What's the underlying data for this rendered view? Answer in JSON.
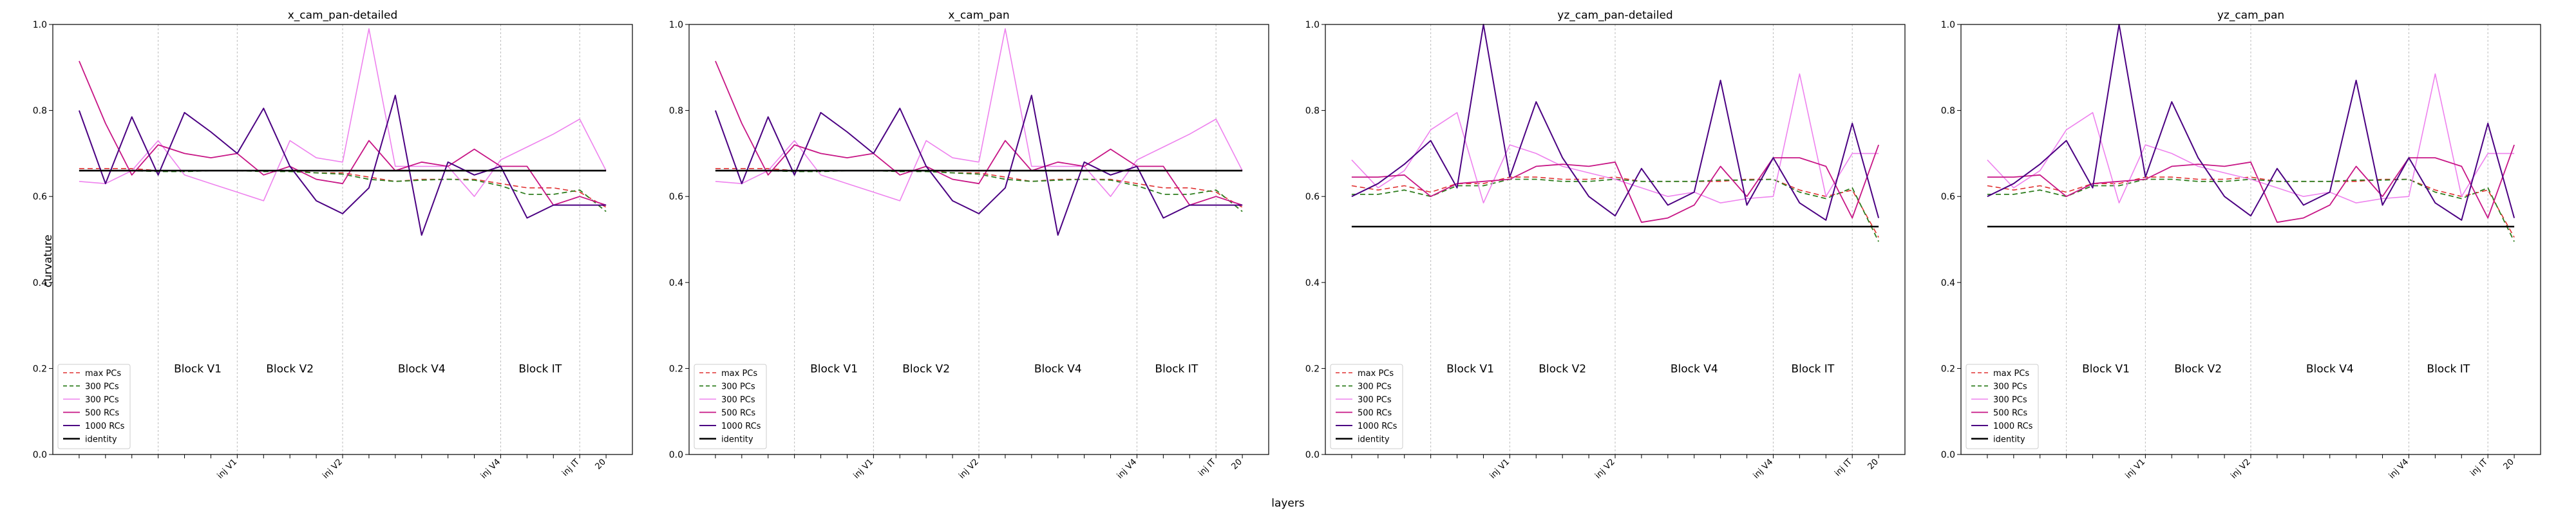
{
  "figure": {
    "xlabel": "layers"
  },
  "colors": {
    "max PCs": "#e03030",
    "300 PCs green": "#2e7d1e",
    "300 PCs pink": "#ee82ee",
    "500 RCs": "#c71585",
    "1000 RCs": "#4b0082",
    "identity": "#000000"
  },
  "chart_data": [
    {
      "type": "line",
      "title": "x_cam_pan-detailed",
      "xlabel": "layers",
      "ylabel": "curvature",
      "xlim": [
        -1,
        21
      ],
      "ylim": [
        0.0,
        1.0
      ],
      "yticks": [
        "0.0",
        "0.2",
        "0.4",
        "0.6",
        "0.8",
        "1.0"
      ],
      "x_tick_labels": [
        {
          "x": 6,
          "label": "inj V1"
        },
        {
          "x": 10,
          "label": "inj V2"
        },
        {
          "x": 16,
          "label": "inj V4"
        },
        {
          "x": 19,
          "label": "inj IT"
        },
        {
          "x": 20,
          "label": "20"
        }
      ],
      "block_lines": [
        3,
        6,
        10,
        16,
        19
      ],
      "block_labels": [
        {
          "x": 4.5,
          "label": "Block V1"
        },
        {
          "x": 8,
          "label": "Block V2"
        },
        {
          "x": 13,
          "label": "Block V4"
        },
        {
          "x": 17.5,
          "label": "Block IT"
        }
      ],
      "legend": [
        "max PCs",
        "300 PCs",
        "300 PCs",
        "500 RCs",
        "1000 RCs",
        "identity"
      ],
      "x": [
        0,
        1,
        2,
        3,
        4,
        5,
        6,
        7,
        8,
        9,
        10,
        11,
        12,
        13,
        14,
        15,
        16,
        17,
        18,
        19,
        20
      ],
      "series": [
        {
          "name": "max PCs",
          "style": "dashed",
          "values": [
            0.665,
            0.665,
            0.665,
            0.66,
            0.66,
            0.66,
            0.66,
            0.66,
            0.66,
            0.655,
            0.655,
            0.645,
            0.635,
            0.64,
            0.64,
            0.64,
            0.63,
            0.62,
            0.62,
            0.61,
            0.575
          ]
        },
        {
          "name": "300 PCs",
          "style": "dashed",
          "values": [
            0.66,
            0.66,
            0.66,
            0.658,
            0.658,
            0.66,
            0.66,
            0.658,
            0.658,
            0.655,
            0.652,
            0.64,
            0.635,
            0.638,
            0.64,
            0.638,
            0.625,
            0.605,
            0.605,
            0.615,
            0.565
          ]
        },
        {
          "name": "300 PCs",
          "style": "solid",
          "values": [
            0.635,
            0.63,
            0.66,
            0.73,
            0.65,
            0.63,
            0.61,
            0.59,
            0.73,
            0.69,
            0.68,
            0.99,
            0.67,
            0.67,
            0.67,
            0.6,
            0.685,
            0.715,
            0.745,
            0.78,
            0.66
          ]
        },
        {
          "name": "500 RCs",
          "style": "solid",
          "values": [
            0.915,
            0.77,
            0.65,
            0.72,
            0.7,
            0.69,
            0.7,
            0.65,
            0.67,
            0.64,
            0.63,
            0.73,
            0.66,
            0.68,
            0.67,
            0.71,
            0.67,
            0.67,
            0.58,
            0.6,
            0.58
          ]
        },
        {
          "name": "1000 RCs",
          "style": "solid",
          "values": [
            0.8,
            0.63,
            0.785,
            0.65,
            0.795,
            0.75,
            0.7,
            0.805,
            0.67,
            0.59,
            0.56,
            0.62,
            0.835,
            0.51,
            0.68,
            0.65,
            0.67,
            0.55,
            0.58,
            0.58,
            0.58
          ]
        },
        {
          "name": "identity",
          "style": "solid",
          "values": [
            0.66,
            0.66,
            0.66,
            0.66,
            0.66,
            0.66,
            0.66,
            0.66,
            0.66,
            0.66,
            0.66,
            0.66,
            0.66,
            0.66,
            0.66,
            0.66,
            0.66,
            0.66,
            0.66,
            0.66,
            0.66
          ]
        }
      ]
    },
    {
      "type": "line",
      "title": "x_cam_pan",
      "xlabel": "layers",
      "ylabel": "",
      "xlim": [
        -1,
        21
      ],
      "ylim": [
        0.0,
        1.0
      ],
      "yticks": [
        "0.0",
        "0.2",
        "0.4",
        "0.6",
        "0.8",
        "1.0"
      ],
      "x_tick_labels": [
        {
          "x": 6,
          "label": "inj V1"
        },
        {
          "x": 10,
          "label": "inj V2"
        },
        {
          "x": 16,
          "label": "inj V4"
        },
        {
          "x": 19,
          "label": "inj IT"
        },
        {
          "x": 20,
          "label": "20"
        }
      ],
      "block_lines": [
        3,
        6,
        10,
        16,
        19
      ],
      "block_labels": [
        {
          "x": 4.5,
          "label": "Block V1"
        },
        {
          "x": 8,
          "label": "Block V2"
        },
        {
          "x": 13,
          "label": "Block V4"
        },
        {
          "x": 17.5,
          "label": "Block IT"
        }
      ],
      "legend": [
        "max PCs",
        "300 PCs",
        "300 PCs",
        "500 RCs",
        "1000 RCs",
        "identity"
      ],
      "x": [
        0,
        1,
        2,
        3,
        4,
        5,
        6,
        7,
        8,
        9,
        10,
        11,
        12,
        13,
        14,
        15,
        16,
        17,
        18,
        19,
        20
      ],
      "series": [
        {
          "name": "max PCs",
          "style": "dashed",
          "values": [
            0.665,
            0.665,
            0.665,
            0.66,
            0.66,
            0.66,
            0.66,
            0.66,
            0.66,
            0.655,
            0.655,
            0.645,
            0.635,
            0.64,
            0.64,
            0.64,
            0.63,
            0.62,
            0.62,
            0.61,
            0.575
          ]
        },
        {
          "name": "300 PCs",
          "style": "dashed",
          "values": [
            0.66,
            0.66,
            0.66,
            0.658,
            0.658,
            0.66,
            0.66,
            0.658,
            0.658,
            0.655,
            0.652,
            0.64,
            0.635,
            0.638,
            0.64,
            0.638,
            0.625,
            0.605,
            0.605,
            0.615,
            0.565
          ]
        },
        {
          "name": "300 PCs",
          "style": "solid",
          "values": [
            0.635,
            0.63,
            0.66,
            0.73,
            0.65,
            0.63,
            0.61,
            0.59,
            0.73,
            0.69,
            0.68,
            0.99,
            0.67,
            0.67,
            0.67,
            0.6,
            0.685,
            0.715,
            0.745,
            0.78,
            0.66
          ]
        },
        {
          "name": "500 RCs",
          "style": "solid",
          "values": [
            0.915,
            0.77,
            0.65,
            0.72,
            0.7,
            0.69,
            0.7,
            0.65,
            0.67,
            0.64,
            0.63,
            0.73,
            0.66,
            0.68,
            0.67,
            0.71,
            0.67,
            0.67,
            0.58,
            0.6,
            0.58
          ]
        },
        {
          "name": "1000 RCs",
          "style": "solid",
          "values": [
            0.8,
            0.63,
            0.785,
            0.65,
            0.795,
            0.75,
            0.7,
            0.805,
            0.67,
            0.59,
            0.56,
            0.62,
            0.835,
            0.51,
            0.68,
            0.65,
            0.67,
            0.55,
            0.58,
            0.58,
            0.58
          ]
        },
        {
          "name": "identity",
          "style": "solid",
          "values": [
            0.66,
            0.66,
            0.66,
            0.66,
            0.66,
            0.66,
            0.66,
            0.66,
            0.66,
            0.66,
            0.66,
            0.66,
            0.66,
            0.66,
            0.66,
            0.66,
            0.66,
            0.66,
            0.66,
            0.66,
            0.66
          ]
        }
      ]
    },
    {
      "type": "line",
      "title": "yz_cam_pan-detailed",
      "xlabel": "layers",
      "ylabel": "",
      "xlim": [
        -1,
        21
      ],
      "ylim": [
        0.0,
        1.0
      ],
      "yticks": [
        "0.0",
        "0.2",
        "0.4",
        "0.6",
        "0.8",
        "1.0"
      ],
      "x_tick_labels": [
        {
          "x": 6,
          "label": "inj V1"
        },
        {
          "x": 10,
          "label": "inj V2"
        },
        {
          "x": 16,
          "label": "inj V4"
        },
        {
          "x": 19,
          "label": "inj IT"
        },
        {
          "x": 20,
          "label": "20"
        }
      ],
      "block_lines": [
        3,
        6,
        10,
        16,
        19
      ],
      "block_labels": [
        {
          "x": 4.5,
          "label": "Block V1"
        },
        {
          "x": 8,
          "label": "Block V2"
        },
        {
          "x": 13,
          "label": "Block V4"
        },
        {
          "x": 17.5,
          "label": "Block IT"
        }
      ],
      "legend": [
        "max PCs",
        "300 PCs",
        "300 PCs",
        "500 RCs",
        "1000 RCs",
        "identity"
      ],
      "x": [
        0,
        1,
        2,
        3,
        4,
        5,
        6,
        7,
        8,
        9,
        10,
        11,
        12,
        13,
        14,
        15,
        16,
        17,
        18,
        19,
        20
      ],
      "series": [
        {
          "name": "max PCs",
          "style": "dashed",
          "values": [
            0.625,
            0.615,
            0.625,
            0.61,
            0.63,
            0.63,
            0.645,
            0.645,
            0.64,
            0.64,
            0.645,
            0.635,
            0.635,
            0.635,
            0.635,
            0.64,
            0.64,
            0.615,
            0.6,
            0.615,
            0.505
          ]
        },
        {
          "name": "300 PCs",
          "style": "dashed",
          "values": [
            0.605,
            0.605,
            0.615,
            0.6,
            0.625,
            0.625,
            0.64,
            0.64,
            0.635,
            0.635,
            0.64,
            0.635,
            0.635,
            0.635,
            0.638,
            0.638,
            0.64,
            0.61,
            0.595,
            0.62,
            0.495
          ]
        },
        {
          "name": "300 PCs",
          "style": "solid",
          "values": [
            0.685,
            0.62,
            0.66,
            0.755,
            0.795,
            0.585,
            0.72,
            0.7,
            0.67,
            0.655,
            0.64,
            0.62,
            0.6,
            0.61,
            0.585,
            0.595,
            0.6,
            0.885,
            0.6,
            0.7,
            0.7
          ]
        },
        {
          "name": "500 RCs",
          "style": "solid",
          "values": [
            0.645,
            0.645,
            0.65,
            0.6,
            0.63,
            0.635,
            0.64,
            0.67,
            0.675,
            0.67,
            0.68,
            0.54,
            0.55,
            0.58,
            0.67,
            0.6,
            0.69,
            0.69,
            0.67,
            0.55,
            0.72
          ]
        },
        {
          "name": "1000 RCs",
          "style": "solid",
          "values": [
            0.6,
            0.63,
            0.675,
            0.73,
            0.62,
            1.0,
            0.645,
            0.82,
            0.69,
            0.6,
            0.555,
            0.665,
            0.58,
            0.61,
            0.87,
            0.58,
            0.69,
            0.585,
            0.545,
            0.77,
            0.55
          ]
        },
        {
          "name": "identity",
          "style": "solid",
          "values": [
            0.53,
            0.53,
            0.53,
            0.53,
            0.53,
            0.53,
            0.53,
            0.53,
            0.53,
            0.53,
            0.53,
            0.53,
            0.53,
            0.53,
            0.53,
            0.53,
            0.53,
            0.53,
            0.53,
            0.53,
            0.53
          ]
        }
      ]
    },
    {
      "type": "line",
      "title": "yz_cam_pan",
      "xlabel": "layers",
      "ylabel": "",
      "xlim": [
        -1,
        21
      ],
      "ylim": [
        0.0,
        1.0
      ],
      "yticks": [
        "0.0",
        "0.2",
        "0.4",
        "0.6",
        "0.8",
        "1.0"
      ],
      "x_tick_labels": [
        {
          "x": 6,
          "label": "inj V1"
        },
        {
          "x": 10,
          "label": "inj V2"
        },
        {
          "x": 16,
          "label": "inj V4"
        },
        {
          "x": 19,
          "label": "inj IT"
        },
        {
          "x": 20,
          "label": "20"
        }
      ],
      "block_lines": [
        3,
        6,
        10,
        16,
        19
      ],
      "block_labels": [
        {
          "x": 4.5,
          "label": "Block V1"
        },
        {
          "x": 8,
          "label": "Block V2"
        },
        {
          "x": 13,
          "label": "Block V4"
        },
        {
          "x": 17.5,
          "label": "Block IT"
        }
      ],
      "legend": [
        "max PCs",
        "300 PCs",
        "300 PCs",
        "500 RCs",
        "1000 RCs",
        "identity"
      ],
      "x": [
        0,
        1,
        2,
        3,
        4,
        5,
        6,
        7,
        8,
        9,
        10,
        11,
        12,
        13,
        14,
        15,
        16,
        17,
        18,
        19,
        20
      ],
      "series": [
        {
          "name": "max PCs",
          "style": "dashed",
          "values": [
            0.625,
            0.615,
            0.625,
            0.61,
            0.63,
            0.63,
            0.645,
            0.645,
            0.64,
            0.64,
            0.645,
            0.635,
            0.635,
            0.635,
            0.635,
            0.64,
            0.64,
            0.615,
            0.6,
            0.615,
            0.505
          ]
        },
        {
          "name": "300 PCs",
          "style": "dashed",
          "values": [
            0.605,
            0.605,
            0.615,
            0.6,
            0.625,
            0.625,
            0.64,
            0.64,
            0.635,
            0.635,
            0.64,
            0.635,
            0.635,
            0.635,
            0.638,
            0.638,
            0.64,
            0.61,
            0.595,
            0.62,
            0.495
          ]
        },
        {
          "name": "300 PCs",
          "style": "solid",
          "values": [
            0.685,
            0.62,
            0.66,
            0.755,
            0.795,
            0.585,
            0.72,
            0.7,
            0.67,
            0.655,
            0.64,
            0.62,
            0.6,
            0.61,
            0.585,
            0.595,
            0.6,
            0.885,
            0.6,
            0.7,
            0.7
          ]
        },
        {
          "name": "500 RCs",
          "style": "solid",
          "values": [
            0.645,
            0.645,
            0.65,
            0.6,
            0.63,
            0.635,
            0.64,
            0.67,
            0.675,
            0.67,
            0.68,
            0.54,
            0.55,
            0.58,
            0.67,
            0.6,
            0.69,
            0.69,
            0.67,
            0.55,
            0.72
          ]
        },
        {
          "name": "1000 RCs",
          "style": "solid",
          "values": [
            0.6,
            0.63,
            0.675,
            0.73,
            0.62,
            1.0,
            0.645,
            0.82,
            0.69,
            0.6,
            0.555,
            0.665,
            0.58,
            0.61,
            0.87,
            0.58,
            0.69,
            0.585,
            0.545,
            0.77,
            0.55
          ]
        },
        {
          "name": "identity",
          "style": "solid",
          "values": [
            0.53,
            0.53,
            0.53,
            0.53,
            0.53,
            0.53,
            0.53,
            0.53,
            0.53,
            0.53,
            0.53,
            0.53,
            0.53,
            0.53,
            0.53,
            0.53,
            0.53,
            0.53,
            0.53,
            0.53,
            0.53
          ]
        }
      ]
    }
  ]
}
